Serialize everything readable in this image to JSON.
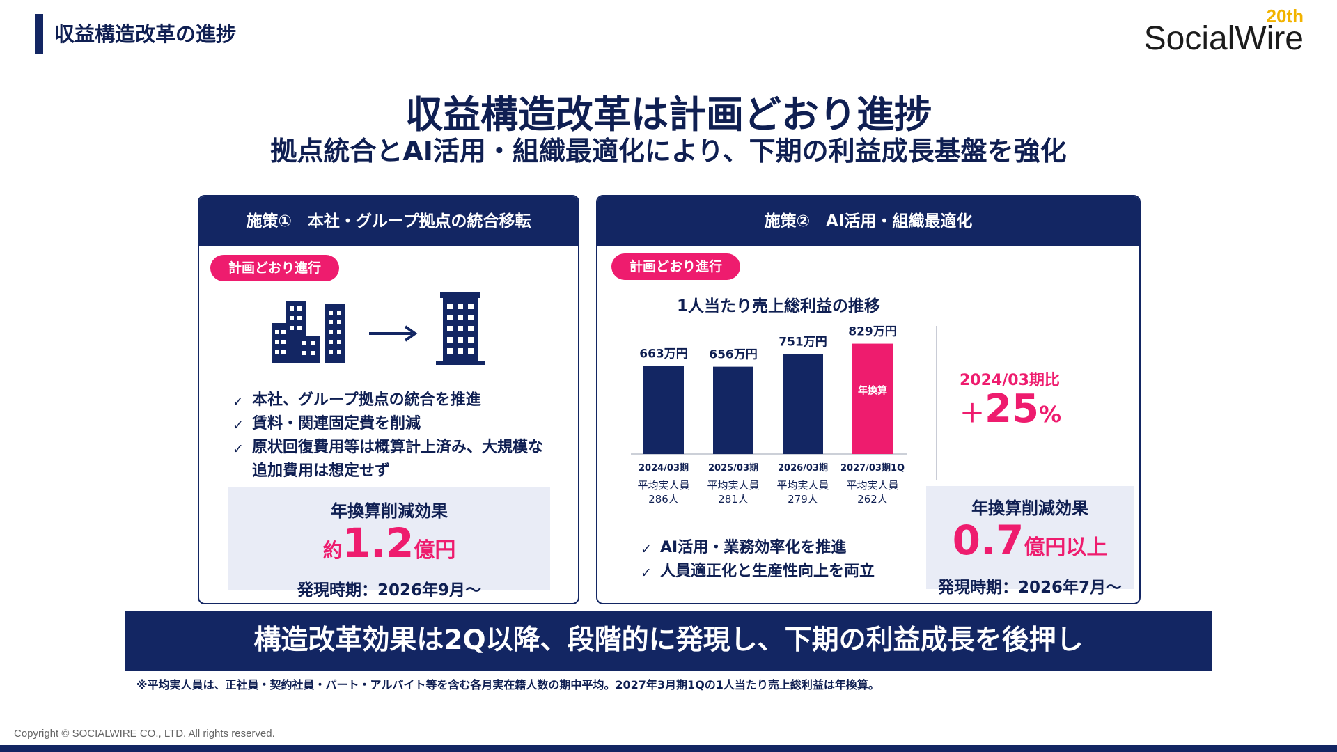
{
  "header": {
    "title": "収益構造改革の進捗"
  },
  "logo": {
    "badge": "20th",
    "name": "SocialWire"
  },
  "headline": {
    "title": "収益構造改革は計画どおり進捗",
    "subtitle": "拠点統合とAI活用・組織最適化により、下期の利益成長基盤を強化"
  },
  "panel1": {
    "title": "施策①　本社・グループ拠点の統合移転",
    "status": "計画どおり進行",
    "icons": [
      "buildings-icon",
      "arrow-right-icon",
      "single-building-icon"
    ],
    "bullets": [
      "本社、グループ拠点の統合を推進",
      "賃料・関連固定費を削減",
      "原状回復費用等は概算計上済み、大規模な",
      "追加費用は想定せず"
    ],
    "effect": {
      "label": "年換算削減効果",
      "prefix": "約",
      "value": "1.2",
      "unit": "億円",
      "timing": "発現時期：2026年9月～"
    }
  },
  "panel2": {
    "title": "施策②　AI活用・組織最適化",
    "status": "計画どおり進行",
    "chart_title": "1人当たり売上総利益の推移",
    "bullets": [
      "AI活用・業務効率化を推進",
      "人員適正化と生産性向上を両立"
    ],
    "comparison": {
      "label": "2024/03期比",
      "sign": "＋",
      "value": "25",
      "unit": "%"
    },
    "effect": {
      "label": "年換算削減効果",
      "value": "0.7",
      "unit": "億円以上",
      "timing": "発現時期：2026年7月～"
    }
  },
  "chart_data": {
    "type": "bar",
    "title": "1人当たり売上総利益の推移",
    "categories": [
      "2024/03期",
      "2025/03期",
      "2026/03期",
      "2027/03期1Q"
    ],
    "values": [
      663,
      656,
      751,
      829
    ],
    "value_labels": [
      "663万円",
      "656万円",
      "751万円",
      "829万円"
    ],
    "headcount_label": "平均実人員",
    "headcounts": [
      "286人",
      "281人",
      "279人",
      "262人"
    ],
    "highlight_label": "年換算",
    "colors": {
      "default": "#132663",
      "highlight": "#ee1c6e"
    },
    "highlight_index": 3,
    "ylim": [
      0,
      900
    ]
  },
  "banner": "構造改革効果は2Q以降、段階的に発現し、下期の利益成長を後押し",
  "note": "※平均実人員は、正社員・契約社員・パート・アルバイト等を含む各月実在籍人数の期中平均。2027年3月期1Qの1人当たり売上総利益は年換算。",
  "footer": {
    "copyright": "Copyright © SOCIALWIRE CO., LTD. All rights reserved."
  },
  "colors": {
    "navy": "#132663",
    "pink": "#ee1c6e",
    "light_panel": "#e9ecf6",
    "gold": "#f2b300"
  }
}
